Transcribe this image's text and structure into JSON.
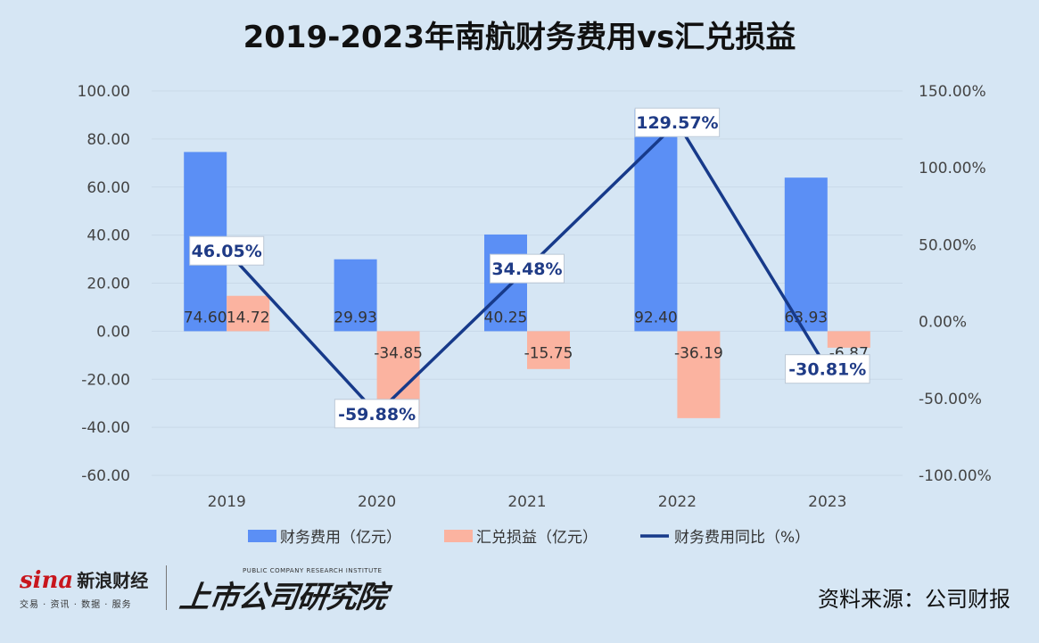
{
  "title": "2019-2023年南航财务费用vs汇兑损益",
  "footer": {
    "sina_mark": "sina",
    "sina_name": "新浪财经",
    "sina_sub": "交易 · 资讯 · 数据 · 服务",
    "sky_logo": "上市公司研究院",
    "sky_tag": "PUBLIC COMPANY RESEARCH INSTITUTE",
    "source": "资料来源：公司财报"
  },
  "colors": {
    "background": "#d6e6f4",
    "bar_expense": "#5b8ff5",
    "bar_fx": "#fbb3a0",
    "line": "#173a8a",
    "label_text": "#1f3b86"
  },
  "chart_data": {
    "type": "bar",
    "categories": [
      "2019",
      "2020",
      "2021",
      "2022",
      "2023"
    ],
    "series": [
      {
        "name": "财务费用（亿元）",
        "type": "bar",
        "axis": "left",
        "values": [
          74.6,
          29.93,
          40.25,
          92.4,
          63.93
        ],
        "labels": [
          "74.60",
          "29.93",
          "40.25",
          "92.40",
          "63.93"
        ]
      },
      {
        "name": "汇兑损益（亿元）",
        "type": "bar",
        "axis": "left",
        "values": [
          14.72,
          -34.85,
          -15.75,
          -36.19,
          -6.87
        ],
        "labels": [
          "14.72",
          "-34.85",
          "-15.75",
          "-36.19",
          "-6.87"
        ]
      },
      {
        "name": "财务费用同比（%）",
        "type": "line",
        "axis": "right",
        "values": [
          46.05,
          -59.88,
          34.48,
          129.57,
          -30.81
        ],
        "labels": [
          "46.05%",
          "-59.88%",
          "34.48%",
          "129.57%",
          "-30.81%"
        ]
      }
    ],
    "ylim_left": [
      -60,
      100
    ],
    "ylim_right": [
      -100,
      150
    ],
    "left_ticks": [
      "100.00",
      "80.00",
      "60.00",
      "40.00",
      "20.00",
      "0.00",
      "-20.00",
      "-40.00",
      "-60.00"
    ],
    "right_ticks": [
      "150.00%",
      "100.00%",
      "50.00%",
      "0.00%",
      "-50.00%",
      "-100.00%"
    ],
    "grid": true,
    "legend": "bottom"
  }
}
